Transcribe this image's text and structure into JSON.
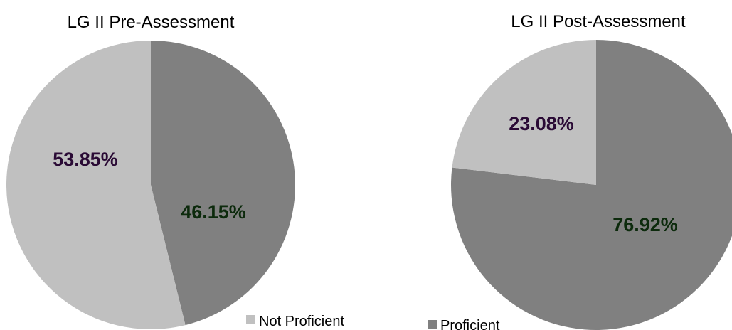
{
  "chart_data": [
    {
      "type": "pie",
      "title": "LG II Pre-Assessment",
      "slices": [
        {
          "label": "Proficient",
          "value": 46.15,
          "display": "46.15%",
          "color": "#808080",
          "label_color": "#0c2a0c"
        },
        {
          "label": "Not Proficient",
          "value": 53.85,
          "display": "53.85%",
          "color": "#c0c0c0",
          "label_color": "#2a0a35"
        }
      ],
      "start_angle_deg": 0,
      "direction": "clockwise"
    },
    {
      "type": "pie",
      "title": "LG II Post-Assessment",
      "slices": [
        {
          "label": "Proficient",
          "value": 76.92,
          "display": "76.92%",
          "color": "#808080",
          "label_color": "#0c2a0c"
        },
        {
          "label": "Not Proficient",
          "value": 23.08,
          "display": "23.08%",
          "color": "#c0c0c0",
          "label_color": "#2a0a35"
        }
      ],
      "start_angle_deg": 0,
      "direction": "clockwise"
    }
  ],
  "legend": {
    "not_proficient": {
      "label": "Not Proficient",
      "color": "#c0c0c0"
    },
    "proficient": {
      "label": "Proficient",
      "color": "#808080"
    }
  }
}
